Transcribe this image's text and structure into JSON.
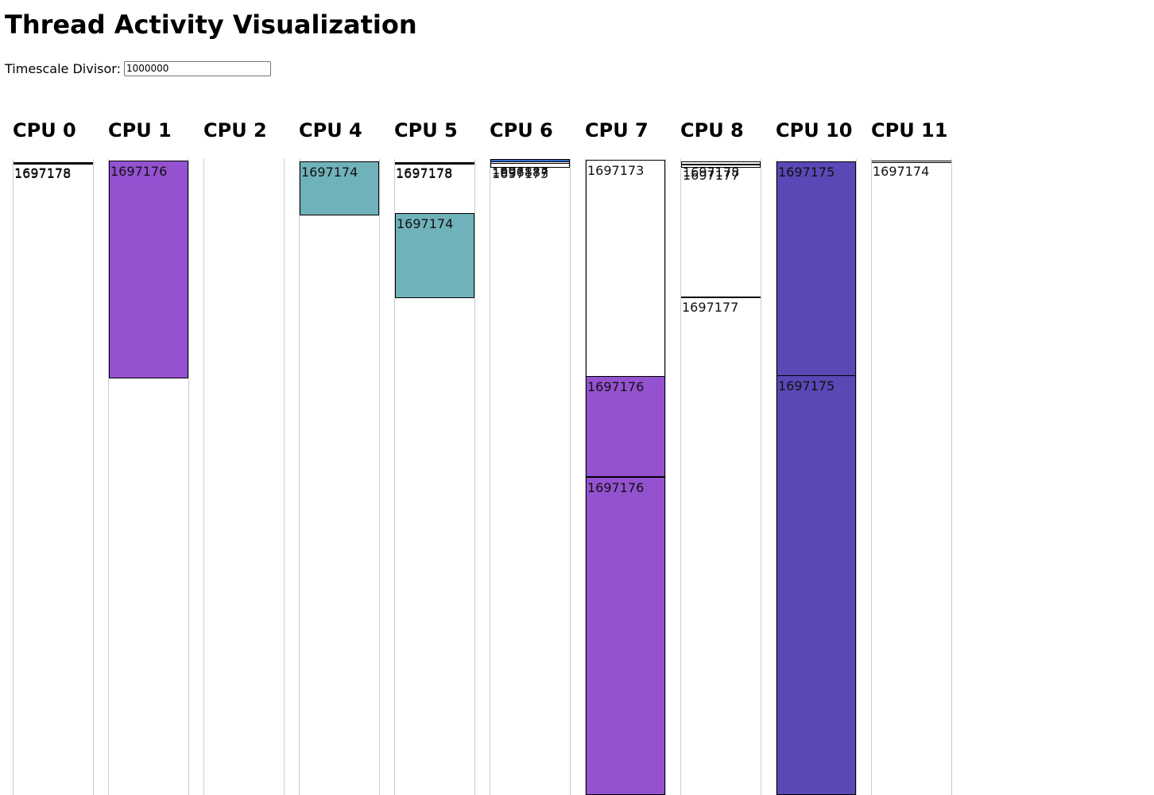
{
  "page": {
    "title": "Thread Activity Visualization"
  },
  "controls": {
    "timescale_label": "Timescale Divisor:",
    "timescale_value": "1000000"
  },
  "colors": {
    "background": "#ffffff",
    "idle_segment": "#ffffff",
    "purple_thread": "#9452d0",
    "teal_thread": "#70b2ba",
    "indigo_thread": "#5b47b6",
    "blue_marker": "#2f6fd0",
    "track_border": "#cccccc"
  },
  "cpus": [
    {
      "name": "CPU 0",
      "segments": [
        {
          "tid": "1697178",
          "color": "#ffffff"
        },
        {
          "tid": "1697178",
          "color": "#ffffff"
        }
      ]
    },
    {
      "name": "CPU 1",
      "segments": [
        {
          "tid": "1697176",
          "color": "#9452d0"
        }
      ]
    },
    {
      "name": "CPU 2",
      "segments": []
    },
    {
      "name": "CPU 4",
      "segments": [
        {
          "tid": "1697174",
          "color": "#70b2ba"
        }
      ]
    },
    {
      "name": "CPU 5",
      "segments": [
        {
          "tid": "1697178",
          "color": "#ffffff"
        },
        {
          "tid": "1697178",
          "color": "#ffffff"
        },
        {
          "tid": "1697174",
          "color": "#70b2ba"
        }
      ]
    },
    {
      "name": "CPU 6",
      "segments": [
        {
          "tid": "1697173",
          "color": "#2f6fd0"
        },
        {
          "tid": "1696887",
          "color": "#ffffff"
        },
        {
          "tid": "1697175",
          "color": "#ffffff"
        }
      ]
    },
    {
      "name": "CPU 7",
      "segments": [
        {
          "tid": "1697173",
          "color": "#ffffff"
        },
        {
          "tid": "1697176",
          "color": "#9452d0"
        },
        {
          "tid": "1697176",
          "color": "#9452d0"
        }
      ]
    },
    {
      "name": "CPU 8",
      "segments": [
        {
          "tid": "1697178",
          "color": "#ffffff"
        },
        {
          "tid": "1697177",
          "color": "#ffffff"
        },
        {
          "tid": "1697177",
          "color": "#ffffff"
        }
      ]
    },
    {
      "name": "CPU 10",
      "segments": [
        {
          "tid": "1697175",
          "color": "#5b47b6"
        },
        {
          "tid": "1697175",
          "color": "#5b47b6"
        }
      ]
    },
    {
      "name": "CPU 11",
      "segments": [
        {
          "tid": "1697174",
          "color": "#ffffff"
        }
      ]
    }
  ]
}
